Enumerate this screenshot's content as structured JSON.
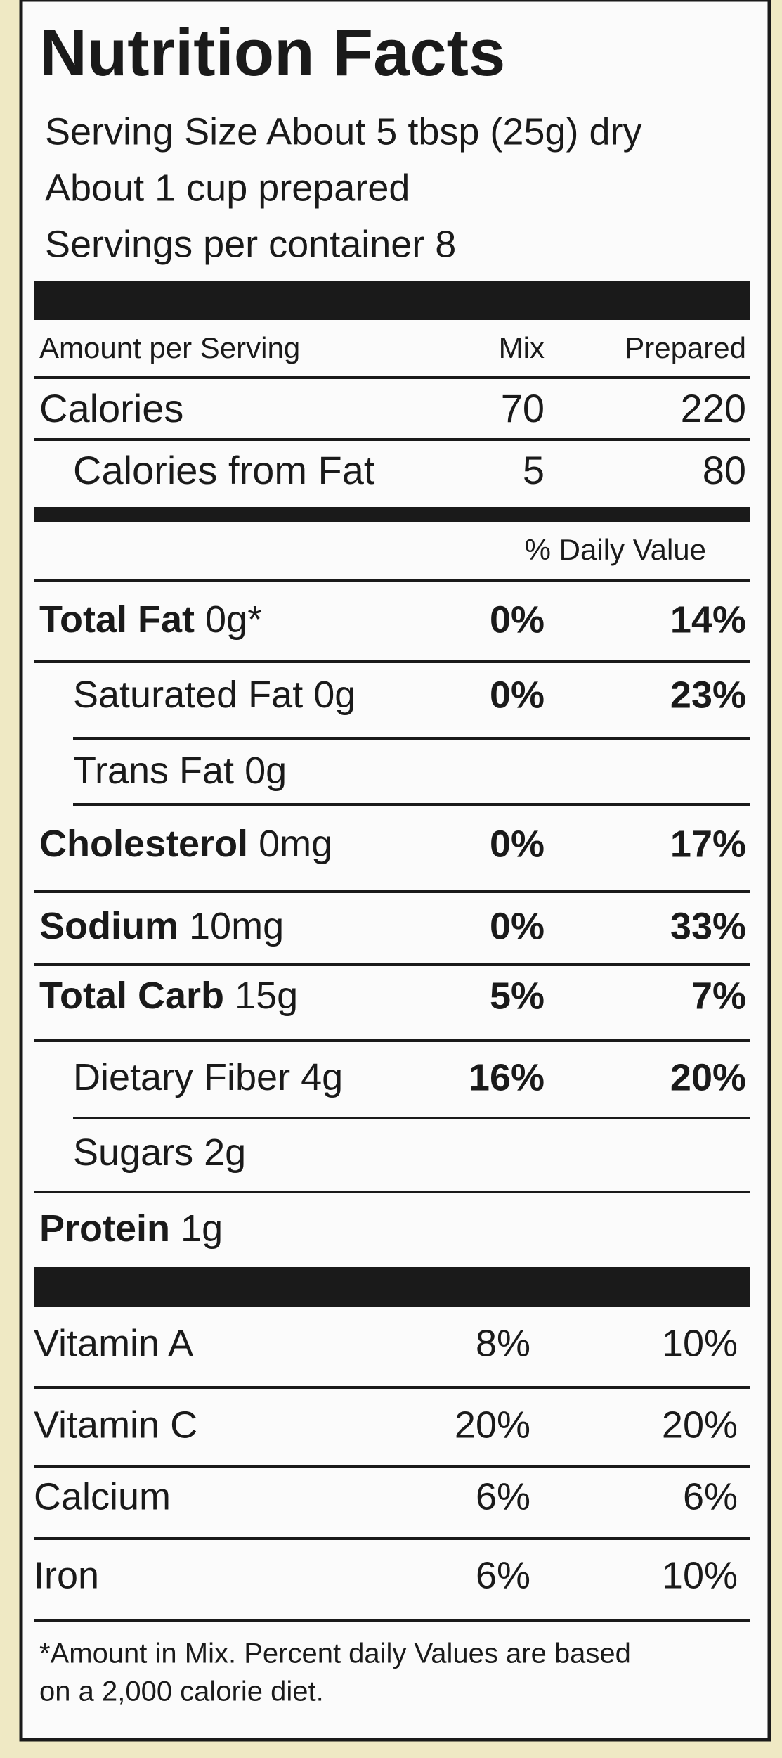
{
  "title": "Nutrition Facts",
  "serving": [
    "Serving Size About 5 tbsp (25g) dry",
    "About 1 cup prepared",
    "Servings per container 8"
  ],
  "columns": {
    "amount": "Amount per Serving",
    "mix": "Mix",
    "prepared": "Prepared"
  },
  "calories": [
    {
      "label": "Calories",
      "mix": "70",
      "prepared": "220"
    },
    {
      "label": "Calories from Fat",
      "mix": "5",
      "prepared": "80"
    }
  ],
  "daily_value_header": "% Daily Value",
  "nutrients": [
    {
      "name": "Total Fat",
      "amount": "0g*",
      "mix": "0%",
      "prepared": "14%"
    },
    {
      "name": "Saturated Fat",
      "amount": "0g",
      "mix": "0%",
      "prepared": "23%"
    },
    {
      "name": "Trans Fat",
      "amount": "0g"
    },
    {
      "name": "Cholesterol",
      "amount": "0mg",
      "mix": "0%",
      "prepared": "17%"
    },
    {
      "name": "Sodium",
      "amount": "10mg",
      "mix": "0%",
      "prepared": "33%"
    },
    {
      "name": "Total Carb",
      "amount": "15g",
      "mix": "5%",
      "prepared": "7%"
    },
    {
      "name": "Dietary Fiber",
      "amount": "4g",
      "mix": "16%",
      "prepared": "20%"
    },
    {
      "name": "Sugars",
      "amount": "2g"
    },
    {
      "name": "Protein",
      "amount": "1g"
    }
  ],
  "vitamins": [
    {
      "name": "Vitamin A",
      "mix": "8%",
      "prepared": "10%"
    },
    {
      "name": "Vitamin C",
      "mix": "20%",
      "prepared": "20%"
    },
    {
      "name": "Calcium",
      "mix": "6%",
      "prepared": "6%"
    },
    {
      "name": "Iron",
      "mix": "6%",
      "prepared": "10%"
    }
  ],
  "footnote": [
    "*Amount in Mix. Percent daily Values are based",
    "on a 2,000 calorie diet."
  ]
}
